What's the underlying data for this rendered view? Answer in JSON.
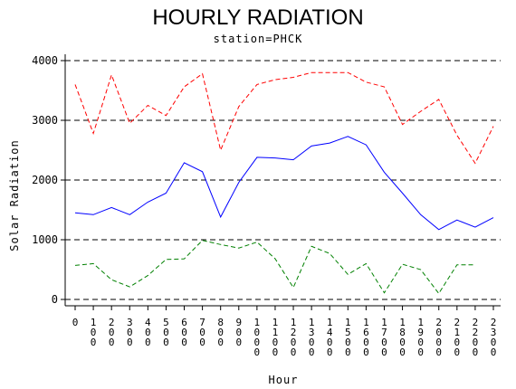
{
  "chart_data": {
    "type": "line",
    "title": "HOURLY RADIATION",
    "subtitle": "station=PHCK",
    "xlabel": "Hour",
    "ylabel": "Solar Radiation",
    "x": [
      "0",
      "100",
      "200",
      "300",
      "400",
      "500",
      "600",
      "700",
      "800",
      "900",
      "1000",
      "1100",
      "1200",
      "1300",
      "1400",
      "1500",
      "1600",
      "1700",
      "1800",
      "1900",
      "2000",
      "2100",
      "2200",
      "2300"
    ],
    "x_tick_labels": [
      [
        "0"
      ],
      [
        "1",
        "0",
        "0"
      ],
      [
        "2",
        "0",
        "0"
      ],
      [
        "3",
        "0",
        "0"
      ],
      [
        "4",
        "0",
        "0"
      ],
      [
        "5",
        "0",
        "0"
      ],
      [
        "6",
        "0",
        "0"
      ],
      [
        "7",
        "0",
        "0"
      ],
      [
        "8",
        "0",
        "0"
      ],
      [
        "9",
        "0",
        "0"
      ],
      [
        "1",
        "0",
        "0",
        "0"
      ],
      [
        "1",
        "1",
        "0",
        "0"
      ],
      [
        "1",
        "2",
        "0",
        "0"
      ],
      [
        "1",
        "3",
        "0",
        "0"
      ],
      [
        "1",
        "4",
        "0",
        "0"
      ],
      [
        "1",
        "5",
        "0",
        "0"
      ],
      [
        "1",
        "6",
        "0",
        "0"
      ],
      [
        "1",
        "7",
        "0",
        "0"
      ],
      [
        "1",
        "8",
        "0",
        "0"
      ],
      [
        "1",
        "9",
        "0",
        "0"
      ],
      [
        "2",
        "0",
        "0",
        "0"
      ],
      [
        "2",
        "1",
        "0",
        "0"
      ],
      [
        "2",
        "2",
        "0",
        "0"
      ],
      [
        "2",
        "3",
        "0",
        "0"
      ]
    ],
    "ylim": [
      0,
      4000
    ],
    "yticks": [
      0,
      1000,
      2000,
      3000,
      4000
    ],
    "grid": "horizontal dashed at y ticks",
    "series": [
      {
        "color": "#ff0000",
        "style": "dashed",
        "values": [
          3600,
          2780,
          3760,
          2950,
          3250,
          3080,
          3560,
          3780,
          2500,
          3230,
          3600,
          3680,
          3720,
          3800,
          3800,
          3800,
          3640,
          3560,
          2930,
          3150,
          3350,
          2750,
          2280,
          2900
        ]
      },
      {
        "color": "#0000ff",
        "style": "solid",
        "values": [
          1450,
          1420,
          1540,
          1420,
          1630,
          1780,
          2290,
          2140,
          1380,
          1960,
          2380,
          2370,
          2340,
          2570,
          2620,
          2730,
          2590,
          2130,
          1780,
          1420,
          1170,
          1330,
          1210,
          1370
        ]
      },
      {
        "color": "#008000",
        "style": "dashed",
        "values": [
          570,
          600,
          330,
          210,
          400,
          670,
          680,
          990,
          920,
          860,
          960,
          680,
          200,
          890,
          770,
          420,
          600,
          110,
          590,
          500,
          100,
          580,
          580,
          null
        ]
      }
    ]
  }
}
